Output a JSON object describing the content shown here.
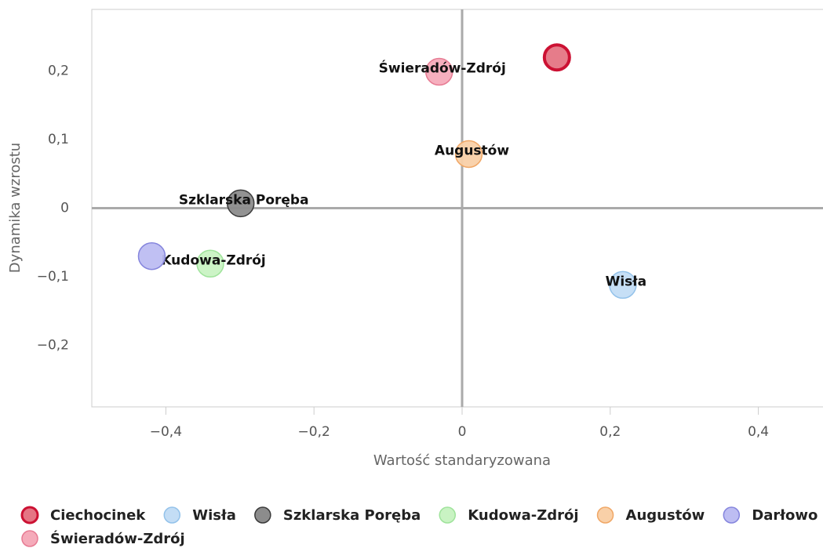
{
  "chart_data": {
    "type": "scatter",
    "x_label": "Wartość standaryzowana",
    "y_label": "Dynamika wzrostu",
    "xlim": [
      -0.5,
      0.5
    ],
    "ylim": [
      -0.29,
      0.29
    ],
    "xticks": [
      {
        "value": -0.4,
        "label": "−0,4"
      },
      {
        "value": -0.2,
        "label": "−0,2"
      },
      0,
      {
        "value": 0.2,
        "label": "0,2"
      },
      {
        "value": 0.4,
        "label": "0,4"
      }
    ],
    "yticks": [
      {
        "value": 0.2,
        "label": "0,2"
      },
      {
        "value": 0.1,
        "label": "0,1"
      },
      0,
      {
        "value": -0.1,
        "label": "−0,1"
      },
      {
        "value": -0.2,
        "label": "−0,2"
      }
    ],
    "legend": "bottom-left",
    "series": [
      {
        "name": "Ciechocinek",
        "color": "#e57584",
        "stroke": "#cc1133",
        "x": 0.128,
        "y": 0.22,
        "labeled": false
      },
      {
        "name": "Wisła",
        "color": "#c3ddf5",
        "stroke": "#93c2ea",
        "x": 0.217,
        "y": -0.112,
        "labeled": true
      },
      {
        "name": "Szklarska Poręba",
        "color": "#8c8c8c",
        "stroke": "#3a3a3a",
        "x": -0.299,
        "y": 0.007,
        "labeled": true
      },
      {
        "name": "Kudowa-Zdrój",
        "color": "#c9f3c3",
        "stroke": "#9fe39b",
        "x": -0.34,
        "y": -0.081,
        "labeled": true
      },
      {
        "name": "Augustów",
        "color": "#f9d0a8",
        "stroke": "#f0a766",
        "x": 0.009,
        "y": 0.079,
        "labeled": true
      },
      {
        "name": "Darłowo",
        "color": "#bdbdf2",
        "stroke": "#8585dd",
        "x": -0.419,
        "y": -0.07,
        "labeled": false
      },
      {
        "name": "Świeradów-Zdrój",
        "color": "#f5abba",
        "stroke": "#e77b93",
        "x": -0.031,
        "y": 0.199,
        "labeled": true
      }
    ]
  }
}
